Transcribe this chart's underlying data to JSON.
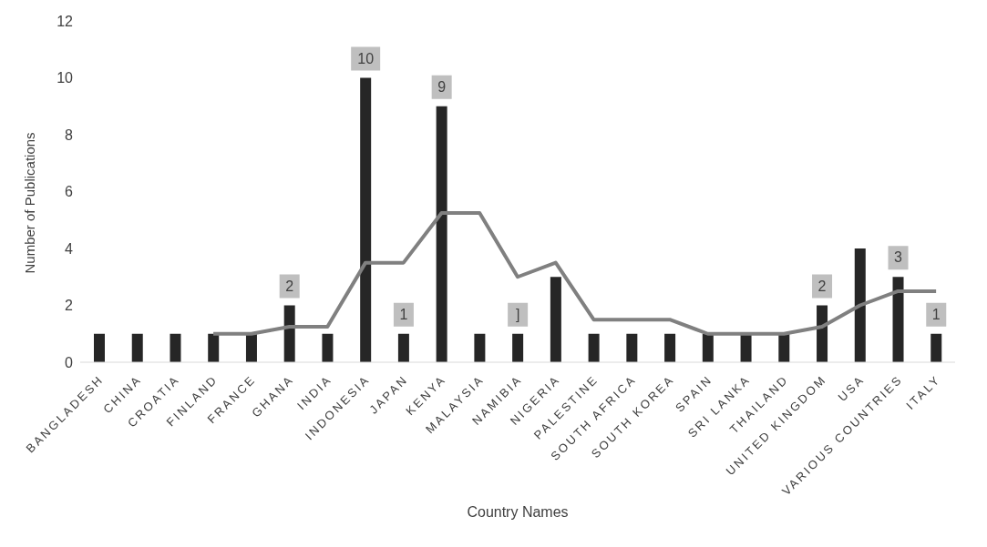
{
  "chart_data": {
    "type": "bar",
    "xlabel": "Country Names",
    "ylabel": "Number of Publications",
    "categories": [
      "BANGLADESH",
      "CHINA",
      "CROATIA",
      "FINLAND",
      "FRANCE",
      "GHANA",
      "INDIA",
      "INDONESIA",
      "JAPAN",
      "KENYA",
      "MALAYSIA",
      "NAMIBIA",
      "NIGERIA",
      "PALESTINE",
      "SOUTH AFRICA",
      "SOUTH KOREA",
      "SPAIN",
      "SRI LANKA",
      "THAILAND",
      "UNITED KINGDOM",
      "USA",
      "VARIOUS COUNTRIES",
      "ITALY"
    ],
    "series": [
      {
        "color": "#262626",
        "values": [
          1,
          1,
          1,
          1,
          1,
          2,
          1,
          10,
          1,
          9,
          1,
          1,
          3,
          1,
          1,
          1,
          1,
          1,
          1,
          2,
          4,
          3,
          1
        ],
        "value_labels": [
          null,
          null,
          null,
          null,
          null,
          "2",
          null,
          "10",
          "1",
          "9",
          null,
          "]",
          null,
          null,
          null,
          null,
          null,
          null,
          null,
          "2",
          null,
          "3",
          "1"
        ]
      },
      {
        "type": "line",
        "color": "#808080",
        "values": [
          null,
          null,
          null,
          1,
          1,
          1.25,
          1.25,
          3.5,
          3.5,
          5.25,
          5.25,
          3,
          3.5,
          1.5,
          1.5,
          1.5,
          1,
          1,
          1,
          1.25,
          2,
          2.5,
          2.5
        ]
      }
    ],
    "ylim": [
      0,
      12
    ],
    "yticks": [
      0,
      2,
      4,
      6,
      8,
      10,
      12
    ]
  }
}
